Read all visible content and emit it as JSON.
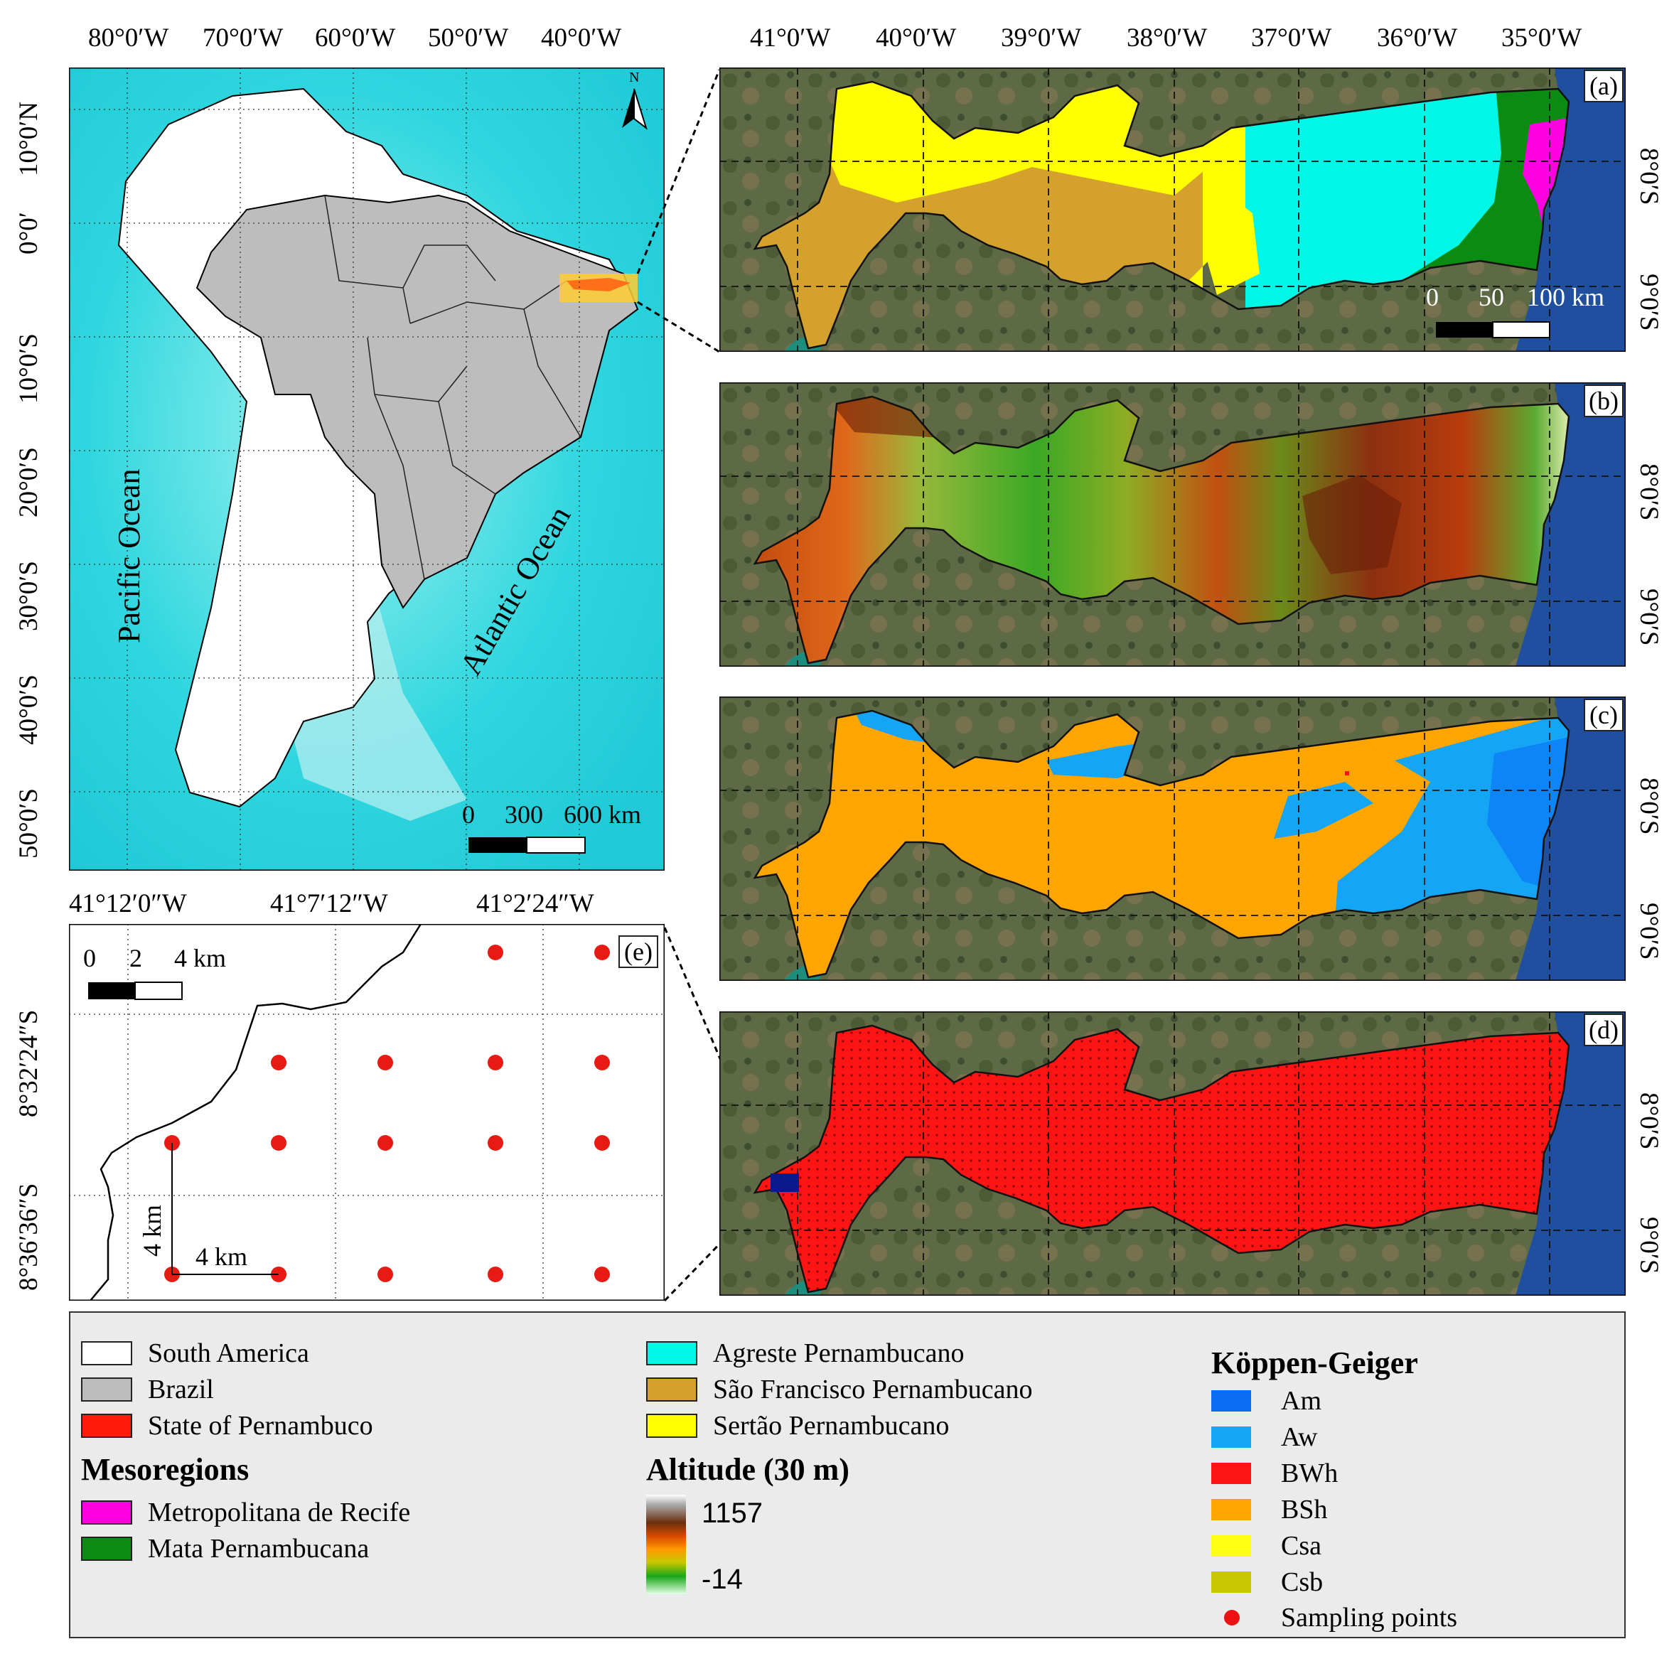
{
  "overview_map": {
    "lon_ticks": [
      "80°0′W",
      "70°0′W",
      "60°0′W",
      "50°0′W",
      "40°0′W"
    ],
    "lat_ticks": [
      "10°0′N",
      "0°0′",
      "10°0′S",
      "20°0′S",
      "30°0′S",
      "40°0′S",
      "50°0′S"
    ],
    "ocean_labels": [
      "Pacific Ocean",
      "Atlantic Ocean"
    ],
    "north_label": "N",
    "scale_labels": [
      "0",
      "300",
      "600 km"
    ]
  },
  "regional_maps": {
    "lon_ticks": [
      "41°0′W",
      "40°0′W",
      "39°0′W",
      "38°0′W",
      "37°0′W",
      "36°0′W",
      "35°0′W"
    ],
    "lat_ticks": [
      "8°0′S",
      "9°0′S"
    ],
    "scale_labels": [
      "0",
      "50",
      "100 km"
    ],
    "panel_labels": [
      "(a)",
      "(b)",
      "(c)",
      "(d)",
      "(e)"
    ]
  },
  "detail_map": {
    "lon_ticks": [
      "41°12′0″W",
      "41°7′12″W",
      "41°2′24″W"
    ],
    "lat_ticks": [
      "8°32′24″S",
      "8°36′36″S"
    ],
    "scale_labels": [
      "0",
      "2",
      "4 km"
    ],
    "spacing_labels": [
      "4 km",
      "4 km"
    ]
  },
  "legend": {
    "col1": [
      {
        "label": "South America",
        "color": "#ffffff"
      },
      {
        "label": "Brazil",
        "color": "#bdbdbd"
      },
      {
        "label": "State of Pernambuco",
        "color": "#ff1a0a"
      }
    ],
    "mesoregions_title": "Mesoregions",
    "mesoregions_col1": [
      {
        "label": "Metropolitana de Recife",
        "color": "#ff00e1"
      },
      {
        "label": "Mata Pernambucana",
        "color": "#0a8c12"
      }
    ],
    "mesoregions_col2": [
      {
        "label": "Agreste Pernambucano",
        "color": "#00f7e6"
      },
      {
        "label": "São Francisco Pernambucano",
        "color": "#d4a22c"
      },
      {
        "label": "Sertão Pernambucano",
        "color": "#ffff00"
      }
    ],
    "altitude_title": "Altitude (30 m)",
    "altitude_max": "1157",
    "altitude_min": "-14",
    "koppen_title": "Köppen-Geiger",
    "koppen": [
      {
        "label": "Am",
        "color": "#0a6cf5"
      },
      {
        "label": "Aw",
        "color": "#14a5f5"
      },
      {
        "label": "BWh",
        "color": "#ff1414"
      },
      {
        "label": "BSh",
        "color": "#ffa500"
      },
      {
        "label": "Csa",
        "color": "#ffff14"
      },
      {
        "label": "Csb",
        "color": "#c8c800"
      }
    ],
    "sampling_label": "Sampling points"
  }
}
